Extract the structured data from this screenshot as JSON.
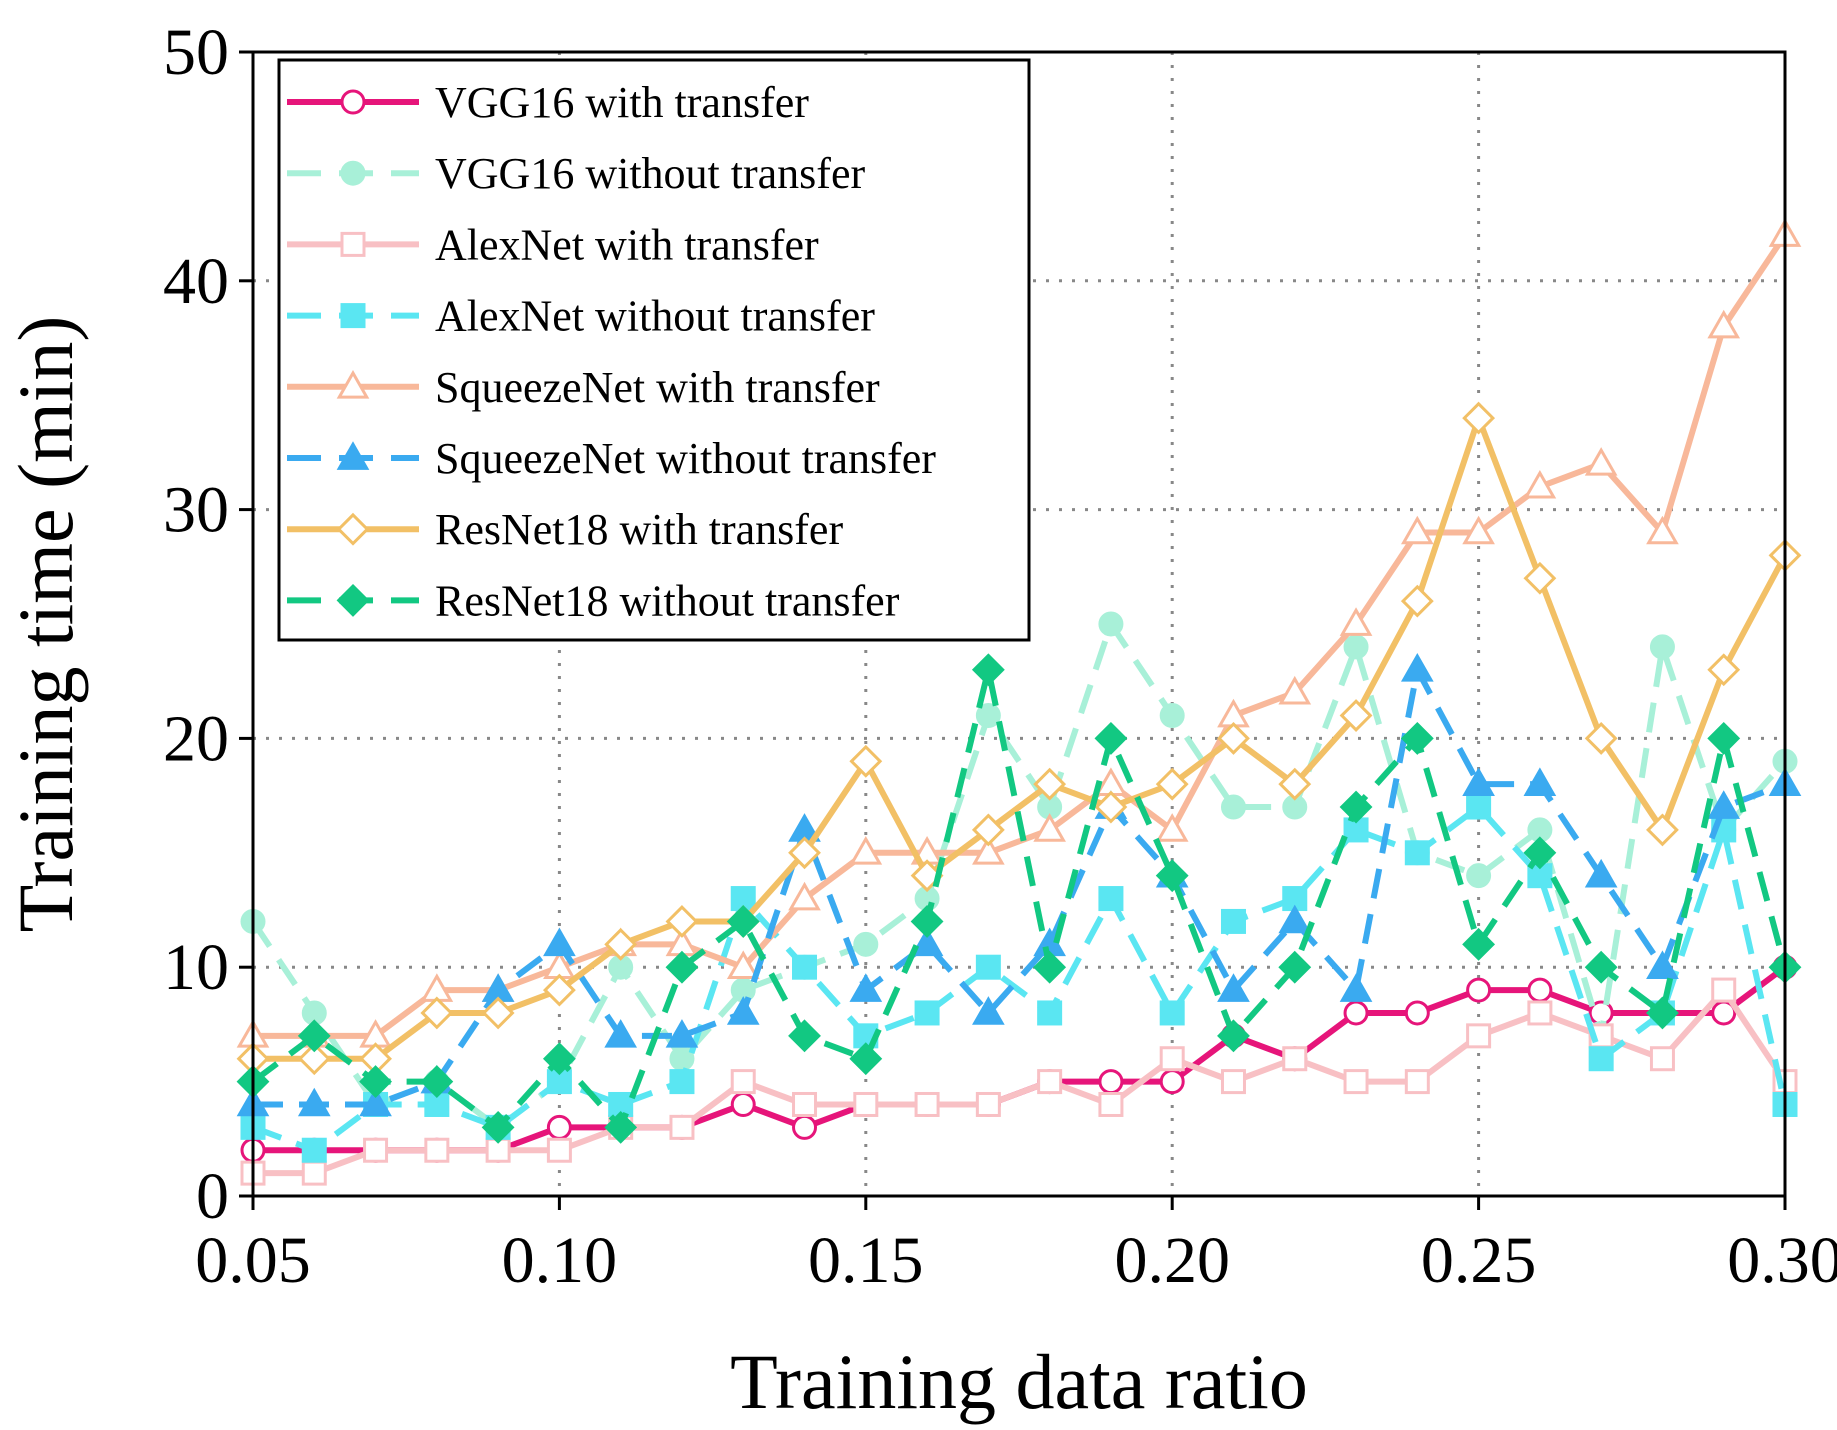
{
  "chart_data": {
    "type": "line",
    "xlabel": "Training data ratio",
    "ylabel": "Training time (min)",
    "xlim": [
      0.05,
      0.3
    ],
    "ylim": [
      0,
      50
    ],
    "xticks": [
      "0.05",
      "0.10",
      "0.15",
      "0.20",
      "0.25",
      "0.30"
    ],
    "yticks": [
      "0",
      "10",
      "20",
      "30",
      "40",
      "50"
    ],
    "grid": true,
    "legend_position": "top-left",
    "x": [
      0.05,
      0.06,
      0.07,
      0.08,
      0.09,
      0.1,
      0.11,
      0.12,
      0.13,
      0.14,
      0.15,
      0.16,
      0.17,
      0.18,
      0.19,
      0.2,
      0.21,
      0.22,
      0.23,
      0.24,
      0.25,
      0.26,
      0.27,
      0.28,
      0.29,
      0.3
    ],
    "series": [
      {
        "name": "VGG16 with transfer",
        "color": "#e6157a",
        "dash": false,
        "marker": "circle",
        "filled": false,
        "values": [
          2,
          2,
          2,
          2,
          2,
          3,
          3,
          3,
          4,
          3,
          4,
          4,
          4,
          5,
          5,
          5,
          7,
          6,
          8,
          8,
          9,
          9,
          8,
          8,
          8,
          10
        ]
      },
      {
        "name": "VGG16 without transfer",
        "color": "#a8f0d8",
        "dash": true,
        "marker": "circle",
        "filled": true,
        "values": [
          12,
          8,
          4,
          5,
          3,
          5,
          10,
          6,
          9,
          10,
          11,
          13,
          21,
          17,
          25,
          21,
          17,
          17,
          24,
          15,
          14,
          16,
          7,
          24,
          16,
          19
        ]
      },
      {
        "name": "AlexNet with transfer",
        "color": "#f8c0c4",
        "dash": false,
        "marker": "square",
        "filled": false,
        "values": [
          1,
          1,
          2,
          2,
          2,
          2,
          3,
          3,
          5,
          4,
          4,
          4,
          4,
          5,
          4,
          6,
          5,
          6,
          5,
          5,
          7,
          8,
          7,
          6,
          9,
          5
        ]
      },
      {
        "name": "AlexNet without transfer",
        "color": "#5ae6f2",
        "dash": true,
        "marker": "square",
        "filled": true,
        "values": [
          3,
          2,
          4,
          4,
          3,
          5,
          4,
          5,
          13,
          10,
          7,
          8,
          10,
          8,
          13,
          8,
          12,
          13,
          16,
          15,
          17,
          14,
          6,
          8,
          16,
          4
        ]
      },
      {
        "name": "SqueezeNet with transfer",
        "color": "#f8b89a",
        "dash": false,
        "marker": "triangle",
        "filled": false,
        "values": [
          7,
          7,
          7,
          9,
          9,
          10,
          11,
          11,
          10,
          13,
          15,
          15,
          15,
          16,
          18,
          16,
          21,
          22,
          25,
          29,
          29,
          31,
          32,
          29,
          38,
          42
        ]
      },
      {
        "name": "SqueezeNet without transfer",
        "color": "#3aaaf0",
        "dash": true,
        "marker": "triangle",
        "filled": true,
        "values": [
          4,
          4,
          4,
          5,
          9,
          11,
          7,
          7,
          8,
          16,
          9,
          11,
          8,
          11,
          17,
          14,
          9,
          12,
          9,
          23,
          18,
          18,
          14,
          10,
          17,
          18
        ]
      },
      {
        "name": "ResNet18 with transfer",
        "color": "#f2c066",
        "dash": false,
        "marker": "diamond",
        "filled": false,
        "values": [
          6,
          6,
          6,
          8,
          8,
          9,
          11,
          12,
          12,
          15,
          19,
          14,
          16,
          18,
          17,
          18,
          20,
          18,
          21,
          26,
          34,
          27,
          20,
          16,
          23,
          28
        ]
      },
      {
        "name": "ResNet18 without transfer",
        "color": "#12c882",
        "dash": true,
        "marker": "diamond",
        "filled": true,
        "values": [
          5,
          7,
          5,
          5,
          3,
          6,
          3,
          10,
          12,
          7,
          6,
          12,
          23,
          10,
          20,
          14,
          7,
          10,
          17,
          20,
          11,
          15,
          10,
          8,
          20,
          10
        ]
      }
    ]
  }
}
